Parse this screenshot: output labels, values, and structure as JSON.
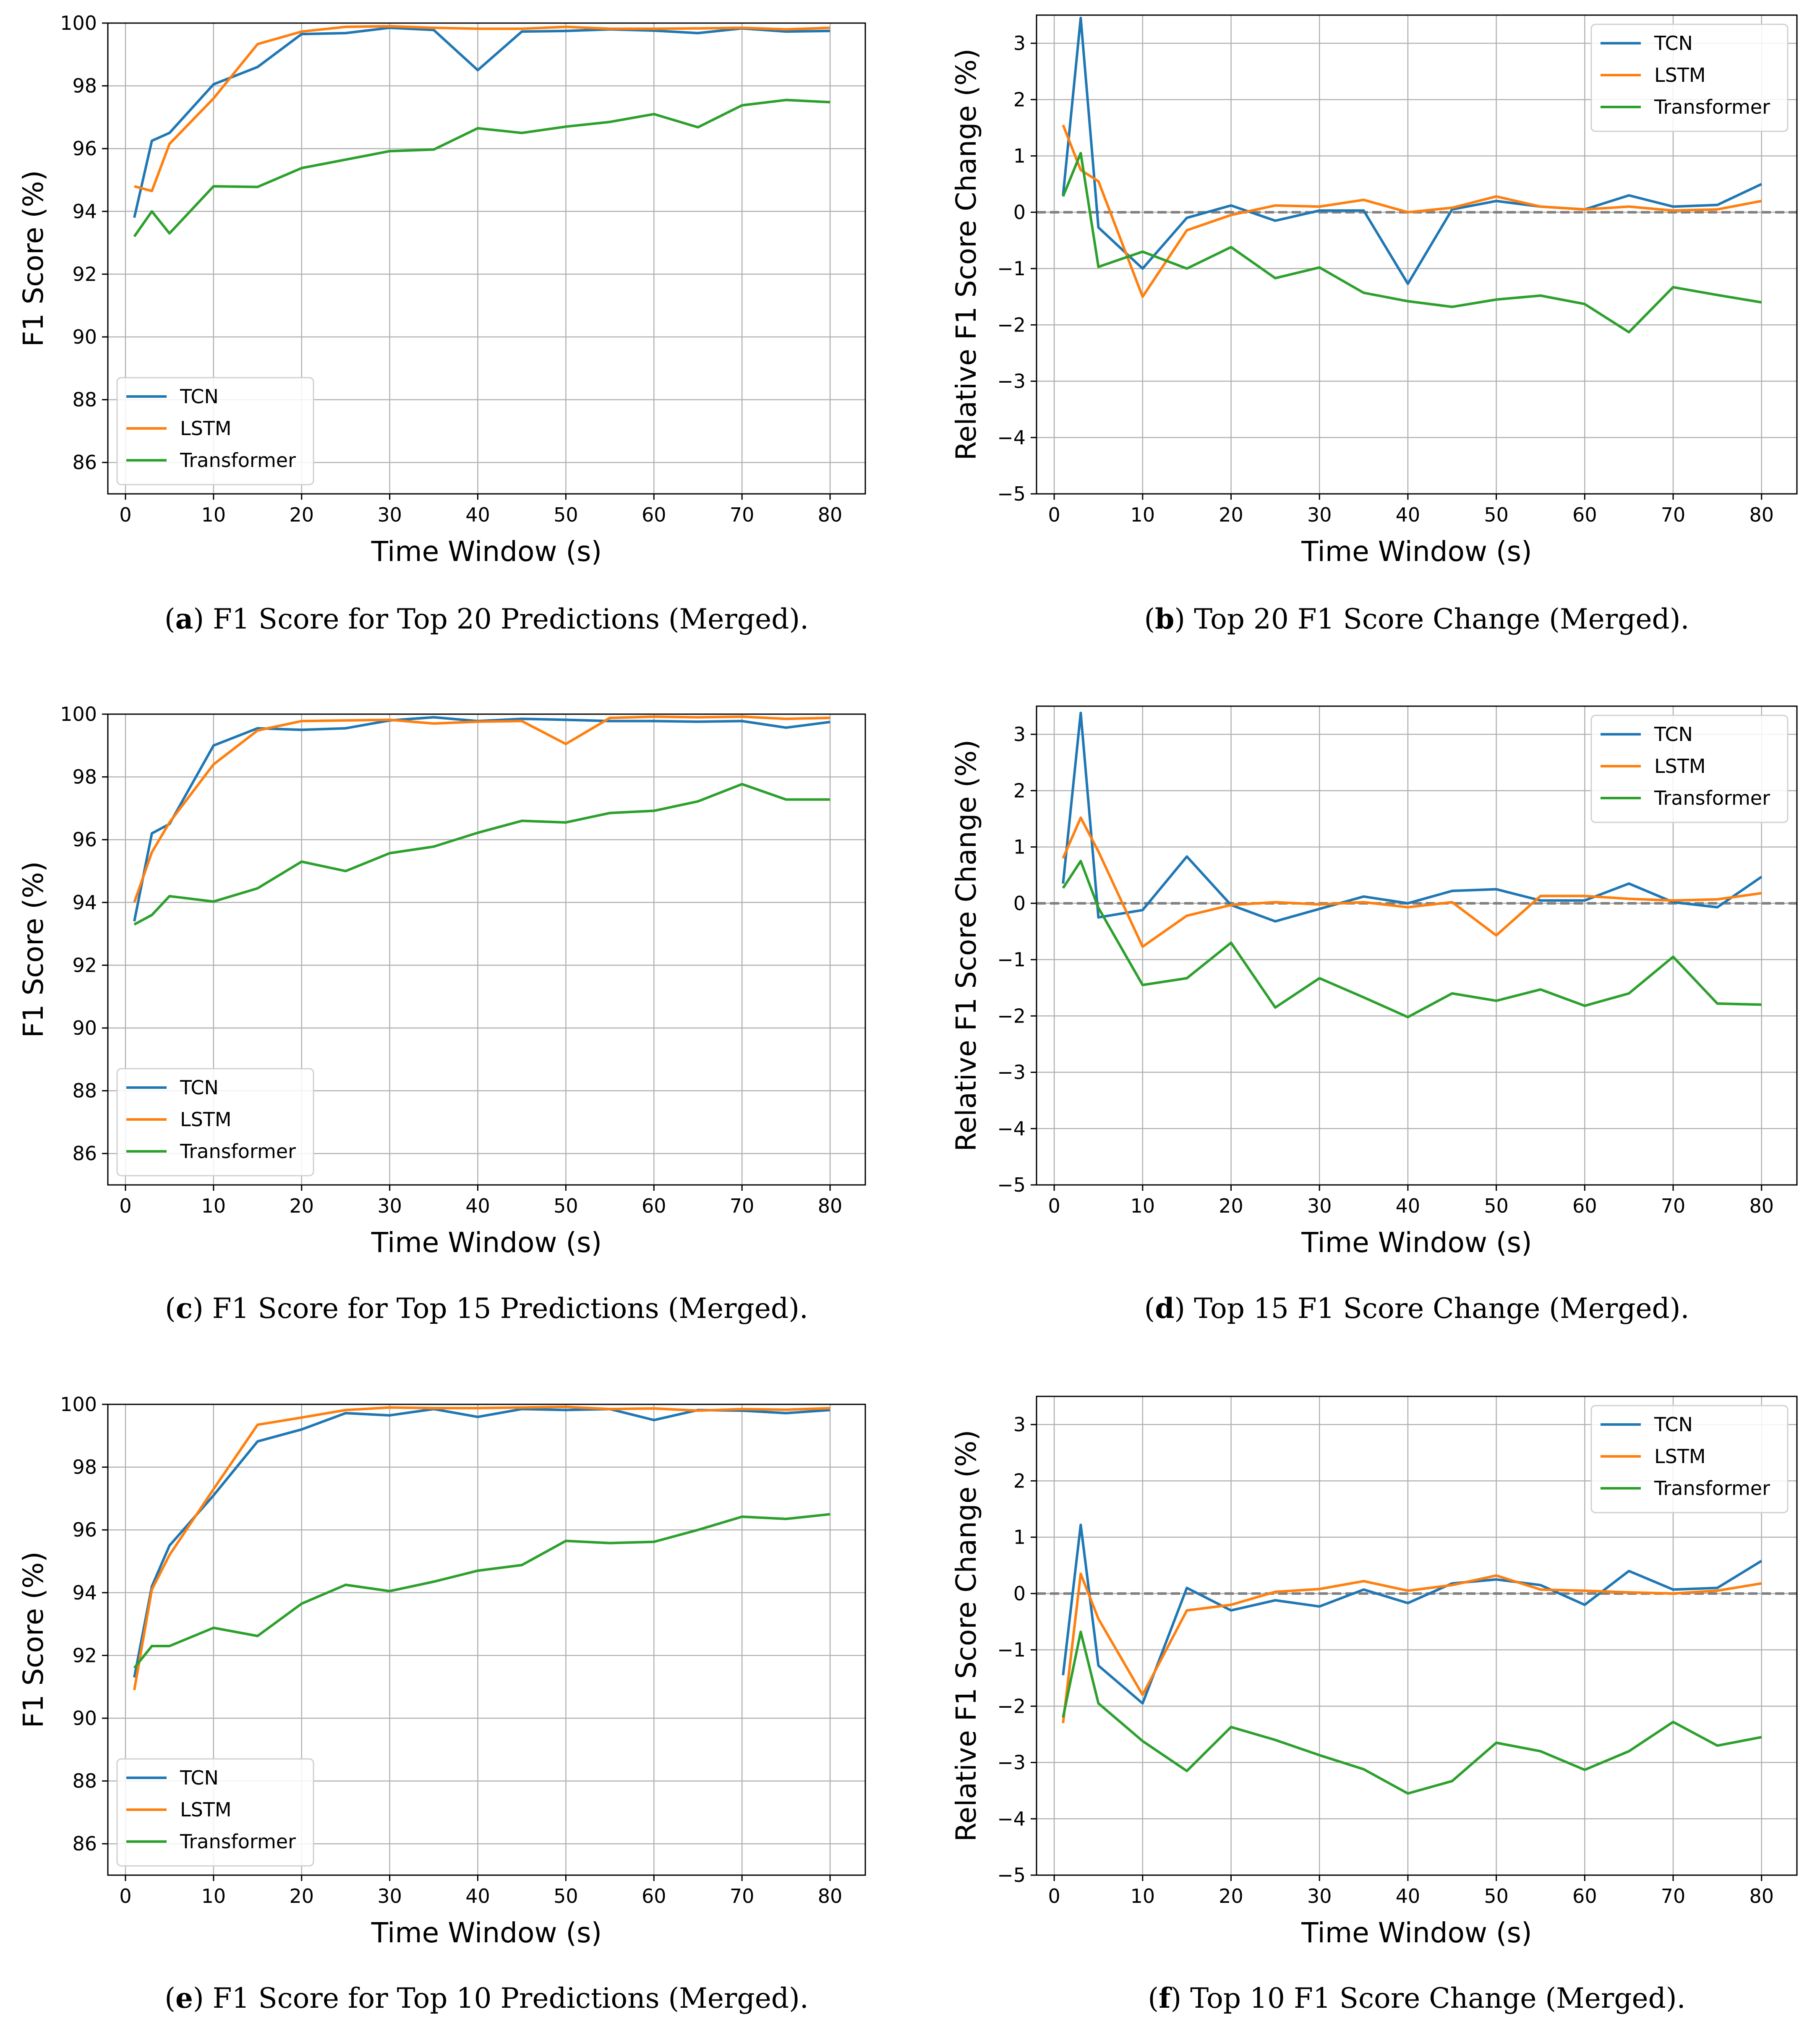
{
  "colors": {
    "TCN": "#1f77b4",
    "LSTM": "#ff7f0e",
    "Transformer": "#2ca02c",
    "grid": "#b0b0b0",
    "zero_line": "#808080"
  },
  "chart_data": [
    {
      "id": "a",
      "type": "line",
      "caption_letter": "a",
      "caption_text": " F1 Score for Top 20 Predictions (Merged).",
      "xlabel": "Time Window (s)",
      "ylabel": "F1 Score (%)",
      "xlim": [
        -2,
        84
      ],
      "ylim": [
        85,
        100
      ],
      "xticks": [
        0,
        10,
        20,
        30,
        40,
        50,
        60,
        70,
        80
      ],
      "yticks": [
        86,
        88,
        90,
        92,
        94,
        96,
        98,
        100
      ],
      "grid": true,
      "legend_position": "lower-left",
      "zero_line": false,
      "x": [
        1,
        3,
        5,
        10,
        15,
        20,
        25,
        30,
        35,
        40,
        45,
        50,
        55,
        60,
        65,
        70,
        75,
        80
      ],
      "series": [
        {
          "name": "TCN",
          "values": [
            93.8,
            96.25,
            96.5,
            98.05,
            98.6,
            99.65,
            99.68,
            99.85,
            99.78,
            98.5,
            99.73,
            99.75,
            99.8,
            99.76,
            99.68,
            99.83,
            99.73,
            99.75
          ]
        },
        {
          "name": "LSTM",
          "values": [
            94.8,
            94.65,
            96.15,
            97.6,
            99.33,
            99.73,
            99.88,
            99.9,
            99.85,
            99.82,
            99.82,
            99.88,
            99.82,
            99.82,
            99.83,
            99.85,
            99.8,
            99.85
          ]
        },
        {
          "name": "Transformer",
          "values": [
            93.2,
            94.0,
            93.3,
            94.8,
            94.78,
            95.38,
            95.65,
            95.92,
            95.97,
            96.65,
            96.5,
            96.7,
            96.85,
            97.1,
            96.68,
            97.38,
            97.55,
            97.48
          ]
        }
      ]
    },
    {
      "id": "b",
      "type": "line",
      "caption_letter": "b",
      "caption_text": " Top 20 F1 Score Change (Merged).",
      "xlabel": "Time Window (s)",
      "ylabel": "Relative F1 Score Change (%)",
      "xlim": [
        -2,
        84
      ],
      "ylim": [
        -5,
        3.5
      ],
      "xticks": [
        0,
        10,
        20,
        30,
        40,
        50,
        60,
        70,
        80
      ],
      "yticks": [
        -5,
        -4,
        -3,
        -2,
        -1,
        0,
        1,
        2,
        3
      ],
      "grid": true,
      "legend_position": "upper-right",
      "zero_line": true,
      "x": [
        1,
        3,
        5,
        10,
        15,
        20,
        25,
        30,
        35,
        40,
        45,
        50,
        55,
        60,
        65,
        70,
        75,
        80
      ],
      "series": [
        {
          "name": "TCN",
          "values": [
            0.3,
            3.45,
            -0.27,
            -1.0,
            -0.1,
            0.12,
            -0.15,
            0.03,
            0.03,
            -1.27,
            0.05,
            0.2,
            0.1,
            0.05,
            0.3,
            0.1,
            0.13,
            0.5
          ]
        },
        {
          "name": "LSTM",
          "values": [
            1.55,
            0.75,
            0.55,
            -1.5,
            -0.32,
            -0.05,
            0.12,
            0.1,
            0.22,
            0.0,
            0.08,
            0.28,
            0.1,
            0.05,
            0.1,
            0.03,
            0.05,
            0.2
          ]
        },
        {
          "name": "Transformer",
          "values": [
            0.28,
            1.05,
            -0.97,
            -0.7,
            -1.0,
            -0.62,
            -1.17,
            -0.98,
            -1.43,
            -1.58,
            -1.68,
            -1.55,
            -1.48,
            -1.63,
            -2.13,
            -1.33,
            -1.47,
            -1.6
          ]
        }
      ]
    },
    {
      "id": "c",
      "type": "line",
      "caption_letter": "c",
      "caption_text": " F1 Score for Top 15 Predictions (Merged).",
      "xlabel": "Time Window (s)",
      "ylabel": "F1 Score (%)",
      "xlim": [
        -2,
        84
      ],
      "ylim": [
        85,
        100
      ],
      "xticks": [
        0,
        10,
        20,
        30,
        40,
        50,
        60,
        70,
        80
      ],
      "yticks": [
        86,
        88,
        90,
        92,
        94,
        96,
        98,
        100
      ],
      "grid": true,
      "legend_position": "lower-left",
      "zero_line": false,
      "x": [
        1,
        3,
        5,
        10,
        15,
        20,
        25,
        30,
        35,
        40,
        45,
        50,
        55,
        60,
        65,
        70,
        75,
        80
      ],
      "series": [
        {
          "name": "TCN",
          "values": [
            93.4,
            96.2,
            96.5,
            99.0,
            99.55,
            99.5,
            99.55,
            99.8,
            99.9,
            99.78,
            99.85,
            99.82,
            99.78,
            99.78,
            99.76,
            99.78,
            99.57,
            99.75
          ]
        },
        {
          "name": "LSTM",
          "values": [
            94.0,
            95.6,
            96.55,
            98.4,
            99.48,
            99.78,
            99.8,
            99.82,
            99.7,
            99.76,
            99.78,
            99.05,
            99.88,
            99.92,
            99.9,
            99.92,
            99.85,
            99.88
          ]
        },
        {
          "name": "Transformer",
          "values": [
            93.3,
            93.6,
            94.2,
            94.03,
            94.45,
            95.3,
            95.0,
            95.57,
            95.78,
            96.22,
            96.6,
            96.55,
            96.85,
            96.92,
            97.22,
            97.77,
            97.28,
            97.28
          ]
        }
      ]
    },
    {
      "id": "d",
      "type": "line",
      "caption_letter": "d",
      "caption_text": " Top 15 F1 Score Change (Merged).",
      "xlabel": "Time Window (s)",
      "ylabel": "Relative F1 Score Change (%)",
      "xlim": [
        -2,
        84
      ],
      "ylim": [
        -5,
        3.5
      ],
      "xticks": [
        0,
        10,
        20,
        30,
        40,
        50,
        60,
        70,
        80
      ],
      "yticks": [
        -5,
        -4,
        -3,
        -2,
        -1,
        0,
        1,
        2,
        3
      ],
      "grid": true,
      "legend_position": "upper-right",
      "zero_line": true,
      "x": [
        1,
        3,
        5,
        10,
        15,
        20,
        25,
        30,
        35,
        40,
        45,
        50,
        55,
        60,
        65,
        70,
        75,
        80
      ],
      "series": [
        {
          "name": "TCN",
          "values": [
            0.35,
            3.38,
            -0.25,
            -0.12,
            0.83,
            -0.03,
            -0.32,
            -0.1,
            0.12,
            0.0,
            0.22,
            0.25,
            0.05,
            0.05,
            0.35,
            0.02,
            -0.07,
            0.47
          ]
        },
        {
          "name": "LSTM",
          "values": [
            0.8,
            1.52,
            0.92,
            -0.77,
            -0.22,
            -0.03,
            0.02,
            -0.02,
            0.02,
            -0.07,
            0.02,
            -0.57,
            0.13,
            0.13,
            0.08,
            0.05,
            0.07,
            0.18
          ]
        },
        {
          "name": "Transformer",
          "values": [
            0.27,
            0.75,
            -0.08,
            -1.45,
            -1.33,
            -0.7,
            -1.85,
            -1.33,
            -1.67,
            -2.02,
            -1.6,
            -1.73,
            -1.53,
            -1.82,
            -1.6,
            -0.95,
            -1.78,
            -1.8
          ]
        }
      ]
    },
    {
      "id": "e",
      "type": "line",
      "caption_letter": "e",
      "caption_text": " F1 Score for Top 10 Predictions (Merged).",
      "xlabel": "Time Window (s)",
      "ylabel": "F1 Score (%)",
      "xlim": [
        -2,
        84
      ],
      "ylim": [
        85,
        100
      ],
      "xticks": [
        0,
        10,
        20,
        30,
        40,
        50,
        60,
        70,
        80
      ],
      "yticks": [
        86,
        88,
        90,
        92,
        94,
        96,
        98,
        100
      ],
      "grid": true,
      "legend_position": "lower-left",
      "zero_line": false,
      "x": [
        1,
        3,
        5,
        10,
        15,
        20,
        25,
        30,
        35,
        40,
        45,
        50,
        55,
        60,
        65,
        70,
        75,
        80
      ],
      "series": [
        {
          "name": "TCN",
          "values": [
            91.3,
            94.2,
            95.5,
            97.1,
            98.82,
            99.2,
            99.72,
            99.65,
            99.85,
            99.6,
            99.85,
            99.82,
            99.85,
            99.5,
            99.82,
            99.8,
            99.72,
            99.82
          ]
        },
        {
          "name": "LSTM",
          "values": [
            90.9,
            94.1,
            95.2,
            97.3,
            99.35,
            99.58,
            99.82,
            99.9,
            99.88,
            99.88,
            99.9,
            99.92,
            99.85,
            99.87,
            99.8,
            99.85,
            99.83,
            99.88
          ]
        },
        {
          "name": "Transformer",
          "values": [
            91.6,
            92.3,
            92.3,
            92.88,
            92.62,
            93.65,
            94.25,
            94.05,
            94.35,
            94.7,
            94.88,
            95.65,
            95.58,
            95.62,
            96.0,
            96.42,
            96.35,
            96.5
          ]
        }
      ]
    },
    {
      "id": "f",
      "type": "line",
      "caption_letter": "f",
      "caption_text": " Top 10 F1 Score Change (Merged).",
      "xlabel": "Time Window (s)",
      "ylabel": "Relative F1 Score Change (%)",
      "xlim": [
        -2,
        84
      ],
      "ylim": [
        -5,
        3.5
      ],
      "xticks": [
        0,
        10,
        20,
        30,
        40,
        50,
        60,
        70,
        80
      ],
      "yticks": [
        -5,
        -4,
        -3,
        -2,
        -1,
        0,
        1,
        2,
        3
      ],
      "grid": true,
      "legend_position": "upper-right",
      "zero_line": true,
      "x": [
        1,
        3,
        5,
        10,
        15,
        20,
        25,
        30,
        35,
        40,
        45,
        50,
        55,
        60,
        65,
        70,
        75,
        80
      ],
      "series": [
        {
          "name": "TCN",
          "values": [
            -1.45,
            1.22,
            -1.28,
            -1.95,
            0.1,
            -0.3,
            -0.12,
            -0.23,
            0.07,
            -0.17,
            0.18,
            0.25,
            0.15,
            -0.2,
            0.4,
            0.07,
            0.1,
            0.58
          ]
        },
        {
          "name": "LSTM",
          "values": [
            -2.3,
            0.35,
            -0.45,
            -1.8,
            -0.3,
            -0.2,
            0.03,
            0.08,
            0.22,
            0.05,
            0.15,
            0.32,
            0.07,
            0.05,
            0.02,
            0.0,
            0.05,
            0.18
          ]
        },
        {
          "name": "Transformer",
          "values": [
            -2.2,
            -0.68,
            -1.95,
            -2.62,
            -3.15,
            -2.37,
            -2.6,
            -2.87,
            -3.12,
            -3.55,
            -3.33,
            -2.65,
            -2.8,
            -3.13,
            -2.8,
            -2.28,
            -2.7,
            -2.55
          ]
        }
      ]
    }
  ]
}
